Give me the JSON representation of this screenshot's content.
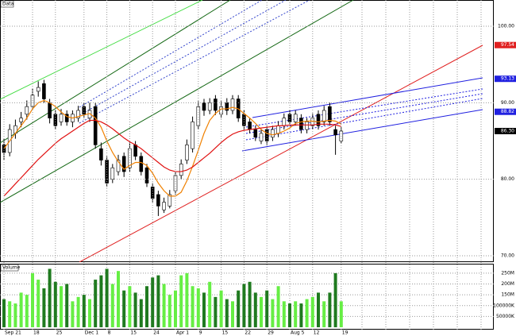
{
  "chart_data": [
    {
      "type": "candlestick",
      "title": "Data",
      "categories": [
        "Sep 21",
        null,
        null,
        null,
        null,
        "18",
        null,
        null,
        null,
        "25",
        null,
        null,
        null,
        null,
        "Dec 1",
        null,
        null,
        null,
        "8",
        null,
        null,
        null,
        "15",
        null,
        null,
        null,
        "24",
        null,
        null,
        null,
        "Apr 1",
        null,
        null,
        null,
        "9",
        null,
        null,
        null,
        "15",
        null,
        null,
        null,
        "22",
        null,
        null,
        null,
        "29",
        null,
        null,
        null,
        "Aug 5",
        null,
        null,
        null,
        "12",
        null,
        null,
        null,
        null,
        "19"
      ],
      "open": [
        84.5,
        83.5,
        86.0,
        87.5,
        88.5,
        89.5,
        91.5,
        92.5,
        90.0,
        88.5,
        87.5,
        88.5,
        87.5,
        88.0,
        89.5,
        88.0,
        89.5,
        84.0,
        82.5,
        80.0,
        81.0,
        83.0,
        81.5,
        84.5,
        83.0,
        81.5,
        79.0,
        78.0,
        76.0,
        76.5,
        78.5,
        80.5,
        82.5,
        84.0,
        87.0,
        90.0,
        89.0,
        90.5,
        88.5,
        90.0,
        89.0,
        90.5,
        88.5,
        87.5,
        86.5,
        85.0,
        86.5,
        85.5,
        86.0,
        87.0,
        88.5,
        87.5,
        88.0,
        86.5,
        87.0,
        88.5,
        87.5,
        89.5,
        86.5,
        85.0
      ],
      "high": [
        85.3,
        87.2,
        87.8,
        88.8,
        90.3,
        91.8,
        92.8,
        93.0,
        90.5,
        89.0,
        89.2,
        89.0,
        89.0,
        89.6,
        90.0,
        90.0,
        90.0,
        84.8,
        83.0,
        82.0,
        83.2,
        83.5,
        84.8,
        85.0,
        83.5,
        82.0,
        79.5,
        78.5,
        77.6,
        78.6,
        81.0,
        82.6,
        85.2,
        88.2,
        90.2,
        90.5,
        90.6,
        91.0,
        90.2,
        90.6,
        91.0,
        91.0,
        89.0,
        88.0,
        87.0,
        86.6,
        87.0,
        87.0,
        87.6,
        88.6,
        89.0,
        89.0,
        88.5,
        88.0,
        88.6,
        89.0,
        89.6,
        90.0,
        87.0,
        86.8
      ],
      "low": [
        82.5,
        83.0,
        85.3,
        86.8,
        87.8,
        89.0,
        90.8,
        90.0,
        87.3,
        86.5,
        87.0,
        87.0,
        86.8,
        87.5,
        88.0,
        87.5,
        84.0,
        81.8,
        79.0,
        79.5,
        80.5,
        80.3,
        81.0,
        82.5,
        80.5,
        79.0,
        77.0,
        75.2,
        75.6,
        76.2,
        78.0,
        80.0,
        82.0,
        83.5,
        86.5,
        88.3,
        88.5,
        88.4,
        88.0,
        88.4,
        88.5,
        87.5,
        86.4,
        86.0,
        85.0,
        84.6,
        84.5,
        85.0,
        85.5,
        86.5,
        87.0,
        87.0,
        86.0,
        86.0,
        86.5,
        86.5,
        87.0,
        87.0,
        83.2,
        84.7
      ],
      "close": [
        83.5,
        86.5,
        87.0,
        88.0,
        89.5,
        91.0,
        92.0,
        90.5,
        88.0,
        87.0,
        88.5,
        87.5,
        88.5,
        89.0,
        88.5,
        89.0,
        84.5,
        82.5,
        79.5,
        81.5,
        82.5,
        81.0,
        84.0,
        83.0,
        81.0,
        79.5,
        77.5,
        76.5,
        77.0,
        78.0,
        80.5,
        82.0,
        84.5,
        87.5,
        89.5,
        89.0,
        90.0,
        89.0,
        89.5,
        89.0,
        90.5,
        88.0,
        87.0,
        86.5,
        85.5,
        86.0,
        85.0,
        86.5,
        87.0,
        88.0,
        87.5,
        88.5,
        86.5,
        87.5,
        88.0,
        87.0,
        89.0,
        87.5,
        85.8,
        86.3
      ],
      "lines": [
        {
          "color": "#f08000",
          "values": [
            84,
            85,
            86,
            87,
            88,
            89.2,
            90,
            90.3,
            90,
            89.5,
            88.8,
            88.2,
            88,
            88.2,
            88.4,
            88.6,
            88,
            86.8,
            85,
            83.5,
            82.3,
            81.3,
            81.8,
            82.2,
            82.2,
            81.8,
            80.8,
            79.5,
            78.5,
            77.8,
            77.8,
            78.3,
            79.8,
            81.7,
            83.8,
            86,
            87.7,
            88.6,
            89.2,
            89.2,
            89.4,
            89.2,
            88.6,
            88,
            87.3,
            86.5,
            86,
            85.8,
            86,
            86.3,
            86.7,
            87.3,
            87.5,
            87.6,
            87.6,
            87.5,
            87.6,
            87.7,
            87.6,
            87.2
          ]
        },
        {
          "color": "#e01010",
          "values": [
            77.8,
            78.6,
            79.4,
            80.2,
            81,
            81.8,
            82.6,
            83.3,
            84,
            84.7,
            85.3,
            85.8,
            86.3,
            86.8,
            87.3,
            87.7,
            87.7,
            87.5,
            87.1,
            86.6,
            86,
            85.4,
            84.9,
            84.5,
            84,
            83.4,
            82.8,
            82.2,
            81.6,
            81.2,
            81,
            81,
            81.2,
            81.6,
            82.2,
            82.8,
            83.4,
            84.1,
            84.8,
            85.4,
            85.9,
            86.2,
            86.4,
            86.5,
            86.6,
            86.7,
            86.8,
            86.9,
            87.0,
            87.0,
            87.1,
            87.1,
            87.1,
            87.1,
            87.1,
            87.2,
            87.2,
            87.2,
            87.1,
            86.9
          ]
        }
      ],
      "ylim": [
        69.17,
        103.43
      ],
      "yticks": [
        {
          "value": 70,
          "label": "70.00"
        },
        {
          "value": 80,
          "label": "80.00"
        },
        {
          "value": 90,
          "label": "90.00"
        },
        {
          "value": 100,
          "label": "100.00"
        }
      ],
      "price_labels": [
        {
          "value": 97.54,
          "label": "97.54",
          "color": "#e02020"
        },
        {
          "value": 93.13,
          "label": "93.13",
          "color": "#2020e0"
        },
        {
          "value": 88.82,
          "label": "88.82",
          "color": "#2020e0"
        },
        {
          "value": 86.3,
          "label": "86.30",
          "color": "#000000"
        }
      ],
      "grid": true,
      "up_color": "#ffffff",
      "down_color": "#000000"
    },
    {
      "type": "bar",
      "title": "Volume",
      "values": [
        130,
        120,
        110,
        160,
        150,
        250,
        220,
        180,
        270,
        210,
        190,
        200,
        120,
        140,
        150,
        130,
        220,
        240,
        270,
        200,
        260,
        170,
        190,
        160,
        130,
        190,
        230,
        240,
        200,
        150,
        170,
        240,
        250,
        190,
        180,
        160,
        210,
        140,
        170,
        130,
        120,
        170,
        200,
        210,
        160,
        140,
        170,
        130,
        190,
        120,
        110,
        120,
        110,
        130,
        140,
        160,
        120,
        160,
        250,
        120
      ],
      "ylim": [
        0,
        290
      ],
      "yticks": [
        {
          "value": 50,
          "label": "50000K"
        },
        {
          "value": 100,
          "label": "100000K"
        },
        {
          "value": 150,
          "label": "150M"
        },
        {
          "value": 200,
          "label": "200M"
        },
        {
          "value": 250,
          "label": "250M"
        }
      ],
      "grid": true,
      "up_color": "#66ee44",
      "down_color": "#1f7a1f"
    }
  ]
}
